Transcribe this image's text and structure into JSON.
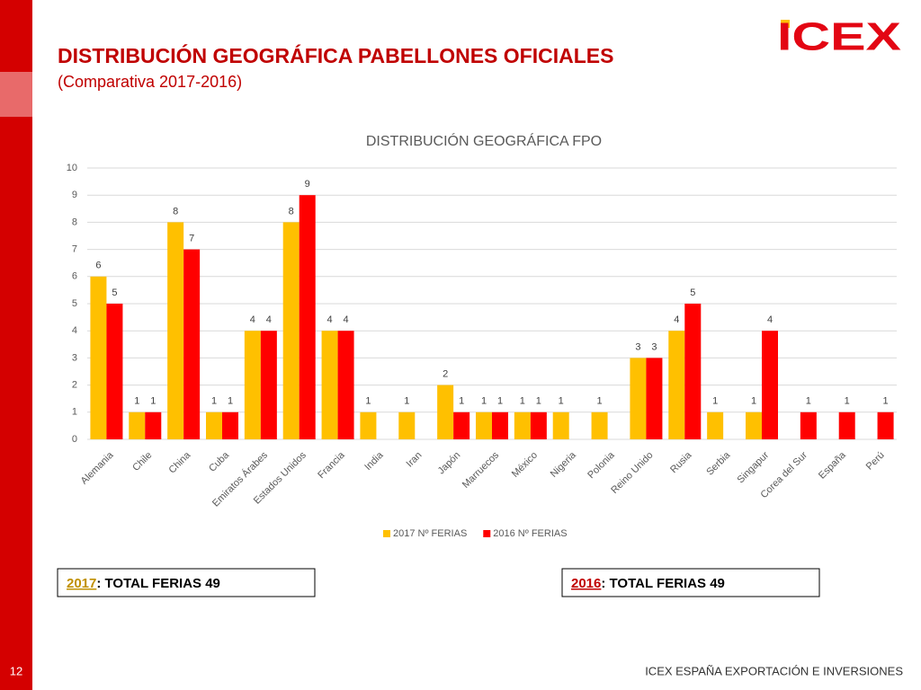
{
  "slide": {
    "title": "DISTRIBUCIÓN GEOGRÁFICA PABELLONES OFICIALES",
    "subtitle": "(Comparativa 2017-2016)",
    "logo": "ICEX",
    "totals": [
      {
        "year": "2017",
        "text": ": TOTAL FERIAS 49"
      },
      {
        "year": "2016",
        "text": ": TOTAL FERIAS 49"
      }
    ],
    "page_number": "12",
    "footer": "ICEX ESPAÑA EXPORTACIÓN E INVERSIONES"
  },
  "chart_data": {
    "type": "bar",
    "title": "DISTRIBUCIÓN GEOGRÁFICA FPO",
    "categories": [
      "Alemania",
      "Chile",
      "China",
      "Cuba",
      "Emiratos Árabes",
      "Estados Unidos",
      "Francia",
      "India",
      "Iran",
      "Japón",
      "Marruecos",
      "México",
      "Nigeria",
      "Polonia",
      "Reino Unido",
      "Rusia",
      "Serbia",
      "Singapur",
      "Corea del Sur",
      "España",
      "Perú"
    ],
    "series": [
      {
        "name": "2017 Nº FERIAS",
        "color": "#FFC000",
        "values": [
          6,
          1,
          8,
          1,
          4,
          8,
          4,
          1,
          1,
          2,
          1,
          1,
          1,
          1,
          3,
          4,
          1,
          1,
          null,
          null,
          null
        ]
      },
      {
        "name": "2016 Nº FERIAS",
        "color": "#FF0000",
        "values": [
          5,
          1,
          7,
          1,
          4,
          9,
          4,
          null,
          null,
          1,
          1,
          1,
          null,
          null,
          3,
          5,
          null,
          4,
          1,
          1,
          1
        ]
      }
    ],
    "ylim": [
      0,
      10
    ],
    "yticks": [
      0,
      1,
      2,
      3,
      4,
      5,
      6,
      7,
      8,
      9,
      10
    ],
    "grid": true,
    "legend": "bottom"
  }
}
